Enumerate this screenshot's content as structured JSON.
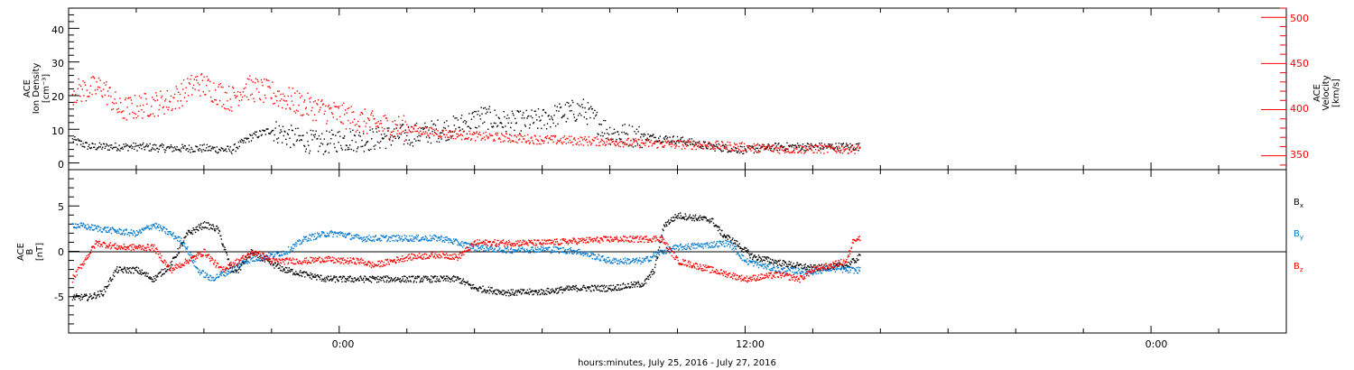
{
  "x_axis": {
    "title": "hours:minutes, July 25, 2016 - July 27, 2016",
    "tick_labels": [
      "0:00",
      "12:00",
      "0:00"
    ]
  },
  "colors": {
    "black": "#000000",
    "red": "#ff0000",
    "blue": "#0077cc"
  },
  "chart_data": [
    {
      "type": "scatter",
      "panel": "plasma",
      "ylabel": [
        "ACE",
        "Ion Density",
        "[cm⁻³]"
      ],
      "ylabel_right": [
        "ACE",
        "Velocity",
        "[km/s]"
      ],
      "x_range_hours": [
        -8,
        28
      ],
      "ylim": [
        -2,
        46
      ],
      "ylim_right": [
        335,
        510
      ],
      "yticks": [
        "0",
        "10",
        "20",
        "30",
        "40"
      ],
      "yticks_right": [
        "350",
        "400",
        "450",
        "500"
      ],
      "series": [
        {
          "axis": "left",
          "color": "#000000",
          "x": [
            -7.9,
            -7.4,
            -6.8,
            -6.0,
            -5.0,
            -4.0,
            -3.2,
            -2.6,
            -2.0,
            -1.2,
            -0.5,
            0.0,
            0.8,
            1.5,
            2.5,
            3.5,
            4.2,
            5.0,
            6.0,
            6.6,
            7.2,
            8.0,
            9.0,
            10.0,
            11.0,
            12.0,
            13.0,
            14.0,
            15.4
          ],
          "y": [
            7,
            5,
            5,
            5,
            4.5,
            4.5,
            4,
            8,
            10,
            7,
            6,
            7,
            7,
            8,
            9,
            11,
            14,
            12,
            13,
            15,
            16,
            9,
            8,
            7,
            5,
            4,
            5,
            5,
            5
          ]
        },
        {
          "axis": "right",
          "color": "#ff0000",
          "x": [
            -7.9,
            -7.0,
            -6.5,
            -5.8,
            -5.0,
            -4.2,
            -3.2,
            -2.8,
            -2.0,
            -1.0,
            0.0,
            1.0,
            2.0,
            3.0,
            4.0,
            5.0,
            6.0,
            7.0,
            8.0,
            9.0,
            10.0,
            11.0,
            12.0,
            13.0,
            14.0,
            15.4
          ],
          "y": [
            420,
            425,
            400,
            405,
            410,
            430,
            412,
            425,
            418,
            405,
            395,
            385,
            380,
            375,
            372,
            370,
            368,
            367,
            366,
            364,
            363,
            362,
            360,
            358,
            358,
            358
          ]
        }
      ]
    },
    {
      "type": "line",
      "panel": "magnetic field",
      "ylabel": [
        "ACE",
        "B",
        "[nT]"
      ],
      "x_range_hours": [
        -8,
        28
      ],
      "ylim": [
        -9,
        9
      ],
      "yticks": [
        "5",
        "0",
        "-5"
      ],
      "series": [
        {
          "name": "Bx",
          "color": "#000000",
          "x": [
            -7.9,
            -7.4,
            -7.0,
            -6.6,
            -6.0,
            -5.5,
            -5.0,
            -4.5,
            -4.0,
            -3.6,
            -3.2,
            -3.0,
            -2.6,
            -2.2,
            -1.6,
            -1.0,
            -0.4,
            0.0,
            1.0,
            2.0,
            3.0,
            3.5,
            4.0,
            5.0,
            6.0,
            7.0,
            8.0,
            9.0,
            9.3,
            9.6,
            10.0,
            11.0,
            11.3,
            11.7,
            12.2,
            13.0,
            14.0,
            15.0,
            15.4
          ],
          "y": [
            -5,
            -5,
            -4.5,
            -2,
            -2,
            -3,
            -1.5,
            2,
            3,
            2.5,
            -2,
            -2,
            0,
            -1,
            -2,
            -2.5,
            -3,
            -3,
            -3,
            -3,
            -3,
            -3,
            -4,
            -4.5,
            -4.4,
            -4,
            -4,
            -3.5,
            -2,
            3,
            4,
            3.5,
            2,
            1,
            -0.5,
            -1.2,
            -1.8,
            -1.5,
            -0.5
          ]
        },
        {
          "name": "By",
          "color": "#0077cc",
          "x": [
            -7.9,
            -7.0,
            -6.0,
            -5.5,
            -5.0,
            -4.6,
            -4.2,
            -3.8,
            -3.2,
            -2.8,
            -2.2,
            -1.6,
            -1.0,
            -0.4,
            0.0,
            0.6,
            1.5,
            2.5,
            3.0,
            3.5,
            4.0,
            5.0,
            6.0,
            7.0,
            8.0,
            9.0,
            9.5,
            10.0,
            11.0,
            11.5,
            12.0,
            12.5,
            13.0,
            14.0,
            14.5,
            15.0,
            15.4
          ],
          "y": [
            3,
            2.5,
            2,
            3,
            2,
            1,
            -2,
            -3,
            -2,
            -1,
            -0.5,
            0,
            1.5,
            2,
            2,
            1.5,
            1.5,
            1.5,
            1.5,
            1,
            0.5,
            0.2,
            0.3,
            0.1,
            -1,
            -1,
            0,
            0.5,
            0.8,
            1,
            -1,
            -1.5,
            -2,
            -2.2,
            -1.8,
            -2,
            -2
          ]
        },
        {
          "name": "Bz",
          "color": "#ff0000",
          "x": [
            -7.9,
            -7.2,
            -6.5,
            -5.5,
            -5.0,
            -4.5,
            -4.0,
            -3.5,
            -3.0,
            -2.5,
            -2.0,
            -1.5,
            -1.0,
            -0.5,
            0.0,
            0.6,
            1.0,
            2.0,
            3.0,
            3.5,
            4.0,
            5.0,
            6.0,
            7.0,
            8.0,
            9.0,
            9.5,
            10.0,
            10.5,
            11.0,
            12.0,
            13.0,
            13.6,
            14.0,
            14.5,
            15.0,
            15.2,
            15.4
          ],
          "y": [
            -3,
            1,
            0.5,
            0.5,
            -2,
            -1,
            0,
            -2,
            -1,
            0,
            -1,
            -1,
            -1,
            -0.8,
            -1,
            -1,
            -1.5,
            -0.6,
            -0.3,
            -0.6,
            1,
            1,
            1,
            1.2,
            1.4,
            1.4,
            1.5,
            -1,
            -1.5,
            -2,
            -3,
            -2.5,
            -3,
            -2,
            -1.5,
            -1,
            1.5,
            1.5
          ]
        }
      ]
    }
  ]
}
